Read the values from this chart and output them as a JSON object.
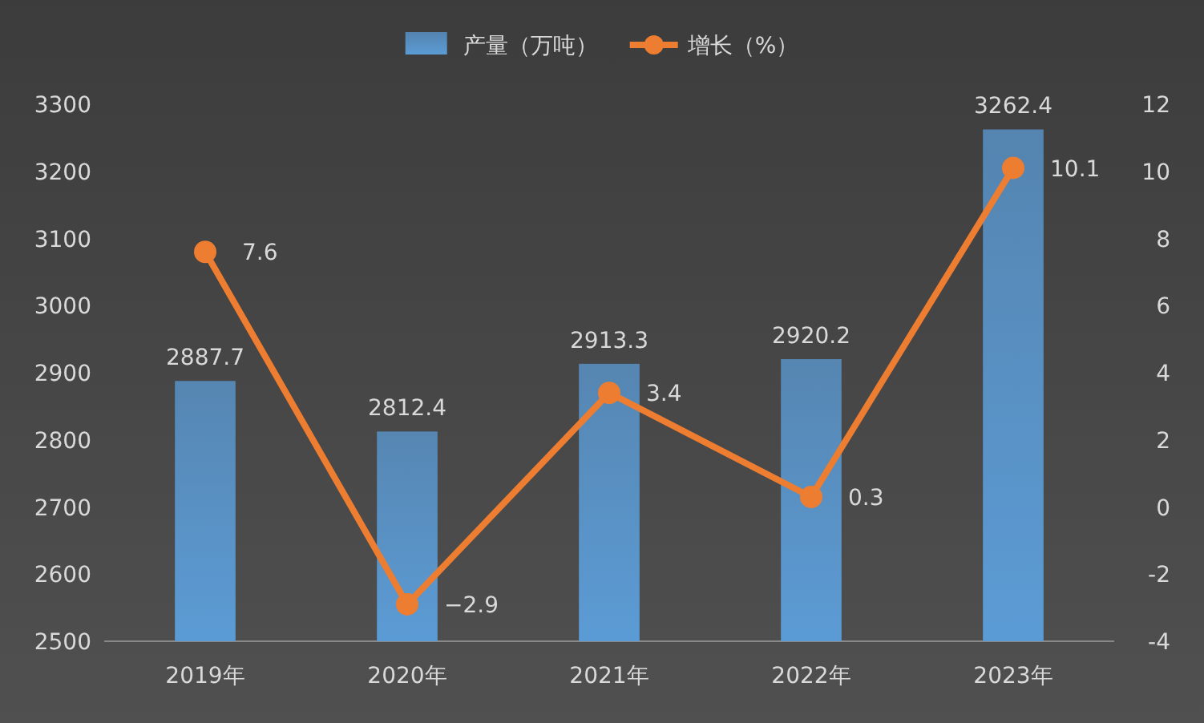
{
  "chart_data": {
    "type": "bar",
    "categories": [
      "2019年",
      "2020年",
      "2021年",
      "2022年",
      "2023年"
    ],
    "series": [
      {
        "name": "产量（万吨）",
        "color": "#5b9bd5",
        "values": [
          2887.7,
          2812.4,
          2913.3,
          2920.2,
          3262.4
        ]
      },
      {
        "name": "增长（%）",
        "type": "line",
        "axis": "y2",
        "color": "#ed7d31",
        "marker": "circle",
        "values": [
          7.6,
          -2.9,
          3.4,
          0.3,
          10.1
        ]
      }
    ],
    "ylim": [
      2500,
      3300
    ],
    "yticks": [
      2500,
      2600,
      2700,
      2800,
      2900,
      3000,
      3100,
      3200,
      3300
    ],
    "y2lim": [
      -4,
      12
    ],
    "y2ticks": [
      -4,
      -2,
      0,
      2,
      4,
      6,
      8,
      10,
      12
    ],
    "data_labels": true,
    "legend": "top",
    "grid": false
  }
}
